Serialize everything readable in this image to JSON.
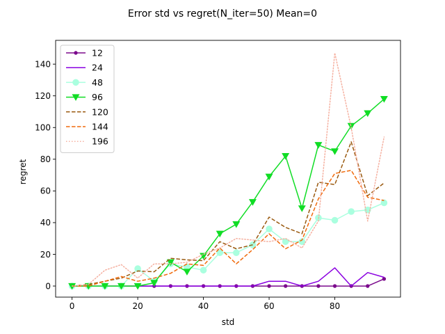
{
  "chart_data": {
    "type": "line",
    "title": "Error std vs regret(N_iter=50) Mean=0",
    "xlabel": "std",
    "ylabel": "regret",
    "xlim": [
      -5,
      100
    ],
    "ylim": [
      -7,
      155
    ],
    "xticks": [
      0,
      20,
      40,
      60,
      80
    ],
    "yticks": [
      0,
      20,
      40,
      60,
      80,
      100,
      120,
      140
    ],
    "grid": false,
    "legend_position": "upper-left",
    "x": [
      0,
      5,
      10,
      15,
      20,
      25,
      30,
      35,
      40,
      45,
      50,
      55,
      60,
      65,
      70,
      75,
      80,
      85,
      90,
      95
    ],
    "series": [
      {
        "name": "12",
        "color": "#7b0a8c",
        "style": "solid",
        "marker": "dot",
        "values": [
          0,
          0,
          0,
          0,
          0,
          0,
          0,
          0,
          0,
          0,
          0,
          0,
          0,
          0,
          0,
          0,
          0,
          0,
          0,
          4.5
        ]
      },
      {
        "name": "24",
        "color": "#8a00e0",
        "style": "solid",
        "marker": "none",
        "values": [
          0,
          0,
          0,
          0,
          0,
          0,
          0,
          0,
          0,
          0,
          0,
          0,
          3,
          3,
          0,
          3,
          11.5,
          0,
          8.5,
          5.5
        ]
      },
      {
        "name": "48",
        "color": "#aaffdf",
        "style": "solid",
        "marker": "circle",
        "values": [
          0,
          0,
          0,
          0,
          11,
          3,
          14,
          12,
          10,
          21,
          21,
          26,
          36,
          28,
          28,
          43,
          41.5,
          47,
          48,
          52.5
        ]
      },
      {
        "name": "96",
        "color": "#10dd25",
        "style": "solid",
        "marker": "triangle-down",
        "values": [
          0,
          0,
          0,
          0,
          0,
          2,
          15,
          9,
          19,
          33,
          39,
          53,
          69,
          82,
          49,
          89,
          85,
          101,
          109,
          118
        ]
      },
      {
        "name": "120",
        "color": "#9a5a10",
        "style": "dashed",
        "marker": "none",
        "values": [
          0,
          1,
          3,
          5,
          9.5,
          9,
          17.5,
          16.5,
          16,
          28,
          23.5,
          26,
          43.5,
          37,
          33,
          65.5,
          64,
          91,
          57,
          65
        ]
      },
      {
        "name": "144",
        "color": "#f06a0c",
        "style": "dashed",
        "marker": "none",
        "values": [
          0,
          0,
          3,
          6,
          3,
          5,
          8,
          14,
          13,
          24,
          14,
          23,
          33,
          23.5,
          29,
          55,
          71,
          73,
          56,
          54
        ]
      },
      {
        "name": "196",
        "color": "#f5b0a0",
        "style": "dotted",
        "marker": "none",
        "values": [
          0,
          1,
          10,
          13.5,
          5,
          14,
          14,
          15,
          20,
          24,
          30,
          29,
          28,
          30,
          24,
          41,
          147,
          100,
          41,
          94
        ]
      }
    ]
  }
}
